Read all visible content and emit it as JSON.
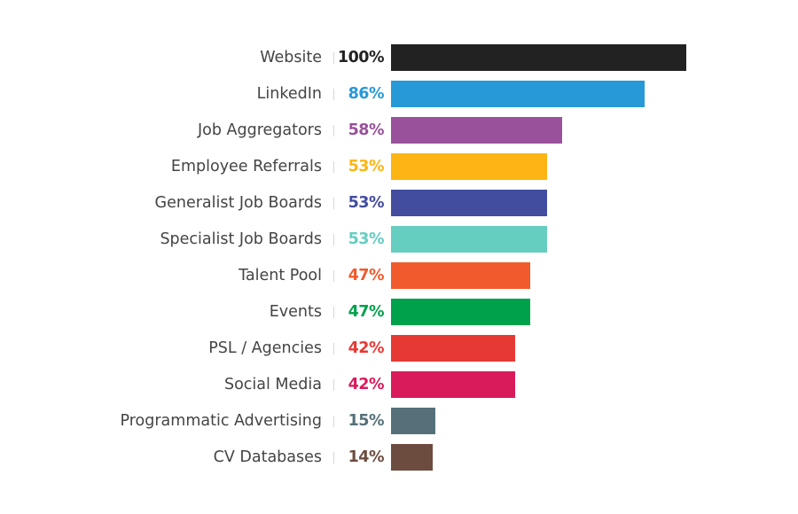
{
  "chart_data": {
    "type": "bar",
    "orientation": "horizontal",
    "title": "",
    "xlabel": "",
    "ylabel": "",
    "xlim": [
      0,
      100
    ],
    "grid": false,
    "legend": "none",
    "categories": [
      "Website",
      "LinkedIn",
      "Job Aggregators",
      "Employee Referrals",
      "Generalist Job Boards",
      "Specialist Job Boards",
      "Talent Pool",
      "Events",
      "PSL / Agencies",
      "Social Media",
      "Programmatic Advertising",
      "CV Databases"
    ],
    "values": [
      100,
      86,
      58,
      53,
      53,
      53,
      47,
      47,
      42,
      42,
      15,
      14
    ],
    "value_labels": [
      "100%",
      "86%",
      "58%",
      "53%",
      "53%",
      "53%",
      "47%",
      "47%",
      "42%",
      "42%",
      "15%",
      "14%"
    ],
    "colors": [
      "#222222",
      "#2799d7",
      "#9a519b",
      "#fdb515",
      "#424da0",
      "#66cdc1",
      "#f15a2c",
      "#00a14b",
      "#e73934",
      "#d91b5c",
      "#56707a",
      "#6c4c3f"
    ]
  }
}
